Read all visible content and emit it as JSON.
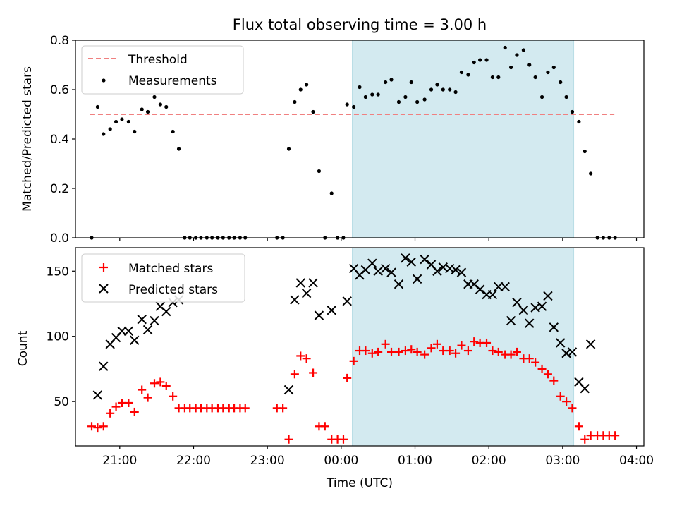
{
  "figure": {
    "title": "Flux total observing time = 3.00 h",
    "xlabel": "Time (UTC)",
    "x_tick_labels": [
      "21:00",
      "22:00",
      "23:00",
      "00:00",
      "01:00",
      "02:00",
      "03:00",
      "04:00"
    ],
    "observing_window": {
      "start": 0.15,
      "end": 3.15,
      "color": "#d3eaf0"
    },
    "x_range": [
      -3.6,
      4.1
    ]
  },
  "chart_data": [
    {
      "type": "scatter",
      "ylabel": "Matched/Predicted stars",
      "ylim": [
        0,
        0.8
      ],
      "y_ticks": [
        "0.0",
        "0.2",
        "0.4",
        "0.6",
        "0.8"
      ],
      "legend": {
        "position": "top-left",
        "entries": [
          "Threshold",
          "Measurements"
        ]
      },
      "threshold": {
        "name": "Threshold",
        "y": 0.5,
        "x_range": [
          -3.4,
          3.7
        ],
        "color": "#f08080",
        "style": "dashed"
      },
      "series": [
        {
          "name": "Measurements",
          "color": "#000000",
          "marker": "dot",
          "points": [
            [
              -3.38,
              0.0
            ],
            [
              -3.3,
              0.53
            ],
            [
              -3.22,
              0.42
            ],
            [
              -3.13,
              0.44
            ],
            [
              -3.05,
              0.47
            ],
            [
              -2.97,
              0.48
            ],
            [
              -2.88,
              0.47
            ],
            [
              -2.8,
              0.43
            ],
            [
              -2.7,
              0.52
            ],
            [
              -2.62,
              0.51
            ],
            [
              -2.53,
              0.57
            ],
            [
              -2.45,
              0.54
            ],
            [
              -2.37,
              0.53
            ],
            [
              -2.28,
              0.43
            ],
            [
              -2.2,
              0.36
            ],
            [
              -2.12,
              0.0
            ],
            [
              -2.05,
              0.0
            ],
            [
              -1.97,
              0.0
            ],
            [
              -1.9,
              0.0
            ],
            [
              -1.82,
              0.0
            ],
            [
              -1.75,
              0.0
            ],
            [
              -1.67,
              0.0
            ],
            [
              -1.6,
              0.0
            ],
            [
              -1.52,
              0.0
            ],
            [
              -1.45,
              0.0
            ],
            [
              -1.37,
              0.0
            ],
            [
              -1.3,
              0.0
            ],
            [
              -0.87,
              0.0
            ],
            [
              -0.79,
              0.0
            ],
            [
              -0.71,
              0.36
            ],
            [
              -0.63,
              0.55
            ],
            [
              -0.55,
              0.6
            ],
            [
              -0.47,
              0.62
            ],
            [
              -0.38,
              0.51
            ],
            [
              -0.3,
              0.27
            ],
            [
              -0.22,
              0.0
            ],
            [
              -0.13,
              0.18
            ],
            [
              -0.05,
              0.0
            ],
            [
              0.03,
              0.0
            ],
            [
              0.08,
              0.54
            ],
            [
              0.17,
              0.53
            ],
            [
              0.25,
              0.61
            ],
            [
              0.33,
              0.57
            ],
            [
              0.42,
              0.58
            ],
            [
              0.5,
              0.58
            ],
            [
              0.6,
              0.63
            ],
            [
              0.68,
              0.64
            ],
            [
              0.78,
              0.55
            ],
            [
              0.87,
              0.57
            ],
            [
              0.95,
              0.63
            ],
            [
              1.03,
              0.55
            ],
            [
              1.13,
              0.56
            ],
            [
              1.22,
              0.6
            ],
            [
              1.3,
              0.62
            ],
            [
              1.38,
              0.6
            ],
            [
              1.47,
              0.6
            ],
            [
              1.55,
              0.59
            ],
            [
              1.63,
              0.67
            ],
            [
              1.72,
              0.66
            ],
            [
              1.8,
              0.71
            ],
            [
              1.88,
              0.72
            ],
            [
              1.97,
              0.72
            ],
            [
              2.05,
              0.65
            ],
            [
              2.13,
              0.65
            ],
            [
              2.22,
              0.77
            ],
            [
              2.3,
              0.69
            ],
            [
              2.38,
              0.74
            ],
            [
              2.47,
              0.76
            ],
            [
              2.55,
              0.7
            ],
            [
              2.63,
              0.65
            ],
            [
              2.72,
              0.57
            ],
            [
              2.8,
              0.67
            ],
            [
              2.88,
              0.69
            ],
            [
              2.97,
              0.63
            ],
            [
              3.05,
              0.57
            ],
            [
              3.13,
              0.51
            ],
            [
              3.22,
              0.47
            ],
            [
              3.3,
              0.35
            ],
            [
              3.38,
              0.26
            ],
            [
              3.47,
              0.0
            ],
            [
              3.55,
              0.0
            ],
            [
              3.63,
              0.0
            ],
            [
              3.71,
              0.0
            ]
          ]
        }
      ]
    },
    {
      "type": "scatter",
      "ylabel": "Count",
      "ylim": [
        16,
        168
      ],
      "y_ticks": [
        "50",
        "100",
        "150"
      ],
      "legend": {
        "position": "top-left",
        "entries": [
          "Matched stars",
          "Predicted stars"
        ]
      },
      "series": [
        {
          "name": "Matched stars",
          "color": "#ff0000",
          "marker": "plus",
          "points": [
            [
              -3.38,
              31
            ],
            [
              -3.3,
              30
            ],
            [
              -3.22,
              31
            ],
            [
              -3.13,
              41
            ],
            [
              -3.05,
              46
            ],
            [
              -2.97,
              49
            ],
            [
              -2.88,
              49
            ],
            [
              -2.8,
              42
            ],
            [
              -2.7,
              59
            ],
            [
              -2.62,
              53
            ],
            [
              -2.53,
              64
            ],
            [
              -2.45,
              65
            ],
            [
              -2.37,
              62
            ],
            [
              -2.28,
              54
            ],
            [
              -2.2,
              45
            ],
            [
              -2.12,
              45
            ],
            [
              -2.05,
              45
            ],
            [
              -1.97,
              45
            ],
            [
              -1.9,
              45
            ],
            [
              -1.82,
              45
            ],
            [
              -1.75,
              45
            ],
            [
              -1.67,
              45
            ],
            [
              -1.6,
              45
            ],
            [
              -1.52,
              45
            ],
            [
              -1.45,
              45
            ],
            [
              -1.37,
              45
            ],
            [
              -1.3,
              45
            ],
            [
              -0.87,
              45
            ],
            [
              -0.79,
              45
            ],
            [
              -0.71,
              21
            ],
            [
              -0.63,
              71
            ],
            [
              -0.55,
              85
            ],
            [
              -0.47,
              83
            ],
            [
              -0.38,
              72
            ],
            [
              -0.3,
              31
            ],
            [
              -0.22,
              31
            ],
            [
              -0.13,
              21
            ],
            [
              -0.05,
              21
            ],
            [
              0.03,
              21
            ],
            [
              0.08,
              68
            ],
            [
              0.17,
              81
            ],
            [
              0.25,
              89
            ],
            [
              0.33,
              89
            ],
            [
              0.42,
              87
            ],
            [
              0.5,
              88
            ],
            [
              0.6,
              94
            ],
            [
              0.68,
              88
            ],
            [
              0.78,
              88
            ],
            [
              0.87,
              89
            ],
            [
              0.95,
              90
            ],
            [
              1.03,
              88
            ],
            [
              1.13,
              86
            ],
            [
              1.22,
              91
            ],
            [
              1.3,
              94
            ],
            [
              1.38,
              89
            ],
            [
              1.47,
              89
            ],
            [
              1.55,
              87
            ],
            [
              1.63,
              93
            ],
            [
              1.72,
              89
            ],
            [
              1.8,
              96
            ],
            [
              1.88,
              95
            ],
            [
              1.97,
              95
            ],
            [
              2.05,
              89
            ],
            [
              2.13,
              88
            ],
            [
              2.22,
              86
            ],
            [
              2.3,
              86
            ],
            [
              2.38,
              88
            ],
            [
              2.47,
              83
            ],
            [
              2.55,
              83
            ],
            [
              2.63,
              80
            ],
            [
              2.72,
              75
            ],
            [
              2.8,
              71
            ],
            [
              2.88,
              66
            ],
            [
              2.97,
              54
            ],
            [
              3.05,
              50
            ],
            [
              3.13,
              45
            ],
            [
              3.22,
              31
            ],
            [
              3.3,
              21
            ],
            [
              3.38,
              24
            ],
            [
              3.47,
              24
            ],
            [
              3.55,
              24
            ],
            [
              3.63,
              24
            ],
            [
              3.71,
              24
            ]
          ]
        },
        {
          "name": "Predicted stars",
          "color": "#000000",
          "marker": "cross",
          "points": [
            [
              -3.3,
              55
            ],
            [
              -3.22,
              77
            ],
            [
              -3.13,
              94
            ],
            [
              -3.05,
              99
            ],
            [
              -2.97,
              104
            ],
            [
              -2.88,
              104
            ],
            [
              -2.8,
              97
            ],
            [
              -2.7,
              113
            ],
            [
              -2.62,
              105
            ],
            [
              -2.53,
              112
            ],
            [
              -2.45,
              123
            ],
            [
              -2.37,
              119
            ],
            [
              -2.28,
              126
            ],
            [
              -2.2,
              128
            ],
            [
              -0.71,
              59
            ],
            [
              -0.63,
              128
            ],
            [
              -0.55,
              141
            ],
            [
              -0.47,
              133
            ],
            [
              -0.38,
              141
            ],
            [
              -0.3,
              116
            ],
            [
              -0.13,
              120
            ],
            [
              0.08,
              127
            ],
            [
              0.17,
              152
            ],
            [
              0.25,
              147
            ],
            [
              0.33,
              151
            ],
            [
              0.42,
              156
            ],
            [
              0.5,
              150
            ],
            [
              0.6,
              152
            ],
            [
              0.68,
              149
            ],
            [
              0.78,
              140
            ],
            [
              0.87,
              160
            ],
            [
              0.95,
              157
            ],
            [
              1.03,
              144
            ],
            [
              1.13,
              159
            ],
            [
              1.22,
              155
            ],
            [
              1.3,
              150
            ],
            [
              1.38,
              153
            ],
            [
              1.47,
              152
            ],
            [
              1.55,
              151
            ],
            [
              1.63,
              149
            ],
            [
              1.72,
              140
            ],
            [
              1.8,
              140
            ],
            [
              1.88,
              136
            ],
            [
              1.97,
              132
            ],
            [
              2.05,
              132
            ],
            [
              2.13,
              138
            ],
            [
              2.22,
              138
            ],
            [
              2.3,
              112
            ],
            [
              2.38,
              126
            ],
            [
              2.47,
              120
            ],
            [
              2.55,
              110
            ],
            [
              2.63,
              122
            ],
            [
              2.72,
              123
            ],
            [
              2.8,
              131
            ],
            [
              2.88,
              107
            ],
            [
              2.97,
              95
            ],
            [
              3.05,
              87
            ],
            [
              3.13,
              88
            ],
            [
              3.22,
              65
            ],
            [
              3.3,
              60
            ],
            [
              3.38,
              94
            ]
          ]
        }
      ]
    }
  ]
}
